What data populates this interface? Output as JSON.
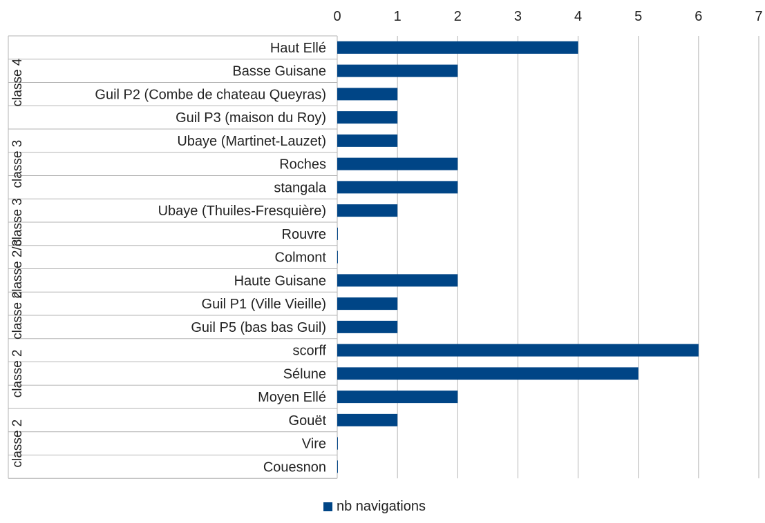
{
  "chart_data": {
    "type": "bar",
    "orientation": "horizontal",
    "categories": [
      "Haut Ellé",
      "Basse Guisane",
      "Guil P2 (Combe de chateau Queyras)",
      "Guil P3 (maison du Roy)",
      "Ubaye (Martinet-Lauzet)",
      "Roches",
      "stangala",
      "Ubaye (Thuiles-Fresquière)",
      "Rouvre",
      "Colmont",
      "Haute Guisane",
      "Guil P1 (Ville Vieille)",
      "Guil P5 (bas bas Guil)",
      "scorff",
      "Sélune",
      "Moyen Ellé",
      "Gouët",
      "Vire",
      "Couesnon"
    ],
    "groups": [
      {
        "label": "classe 4",
        "categories": [
          "Haut Ellé",
          "Basse Guisane",
          "Guil P2 (Combe de chateau Queyras)",
          "Guil P3 (maison du Roy)"
        ]
      },
      {
        "label": "classe 3",
        "categories": [
          "Ubaye (Martinet-Lauzet)",
          "Roches",
          "stangala"
        ]
      },
      {
        "label": "classe 3",
        "categories": [
          "Ubaye (Thuiles-Fresquière)",
          "Rouvre"
        ]
      },
      {
        "label": "classe 2/3",
        "categories": [
          "Colmont",
          "Haute Guisane"
        ]
      },
      {
        "label": "classe 2",
        "categories": [
          "Guil P1 (Ville Vieille)",
          "Guil P5 (bas bas Guil)"
        ]
      },
      {
        "label": "classe 2",
        "categories": [
          "scorff",
          "Sélune",
          "Moyen Ellé"
        ]
      },
      {
        "label": "classe 2",
        "categories": [
          "Gouët",
          "Vire",
          "Couesnon"
        ]
      }
    ],
    "series": [
      {
        "name": "nb navigations",
        "values": [
          4,
          2,
          1,
          1,
          1,
          2,
          2,
          1,
          0,
          0,
          2,
          1,
          1,
          6,
          5,
          2,
          1,
          0,
          0
        ],
        "color": "#004586"
      }
    ],
    "xlim": [
      0,
      7
    ],
    "xticks": [
      "0",
      "1",
      "2",
      "3",
      "4",
      "5",
      "6",
      "7"
    ],
    "x_axis_position": "top",
    "grid": true,
    "legend": "bottom",
    "title": "",
    "xlabel": "",
    "ylabel": ""
  }
}
